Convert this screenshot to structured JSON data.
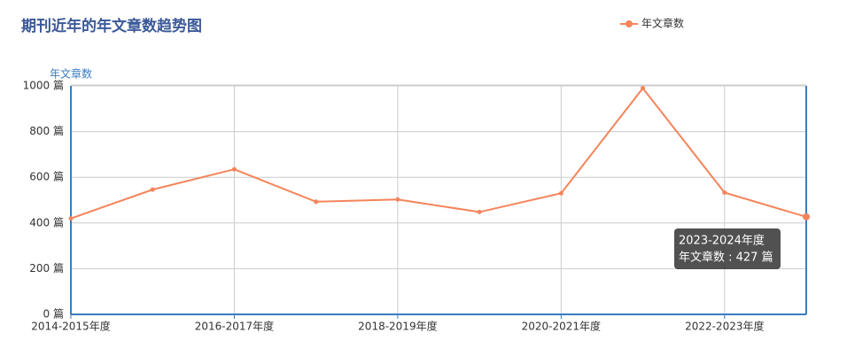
{
  "chart_data": {
    "type": "line",
    "title": "期刊近年的年文章数趋势图",
    "y_label": "年文章数",
    "categories": [
      "2014-2015年度",
      null,
      "2016-2017年度",
      null,
      "2018-2019年度",
      null,
      "2020-2021年度",
      null,
      "2022-2023年度",
      "2023-2024年度"
    ],
    "x_label_interval": 2,
    "series": [
      {
        "name": "年文章数",
        "color": "#f5845a",
        "values": [
          420,
          546,
          635,
          493,
          503,
          448,
          530,
          990,
          533,
          427
        ],
        "value_labels": [
          null,
          null,
          null,
          null,
          null,
          null,
          null,
          null,
          null,
          "年文章数 : 427 篇"
        ]
      }
    ],
    "tooltip_index": 9,
    "ylim": [
      0,
      1000
    ],
    "yticks": [
      {
        "value": 0,
        "label": "0 篇"
      },
      {
        "value": 200,
        "label": "200 篇"
      },
      {
        "value": 400,
        "label": "400 篇"
      },
      {
        "value": 600,
        "label": "600 篇"
      },
      {
        "value": 800,
        "label": "800 篇"
      },
      {
        "value": 1000,
        "label": "1000 篇"
      }
    ],
    "grid": true,
    "legend": "top-right"
  }
}
